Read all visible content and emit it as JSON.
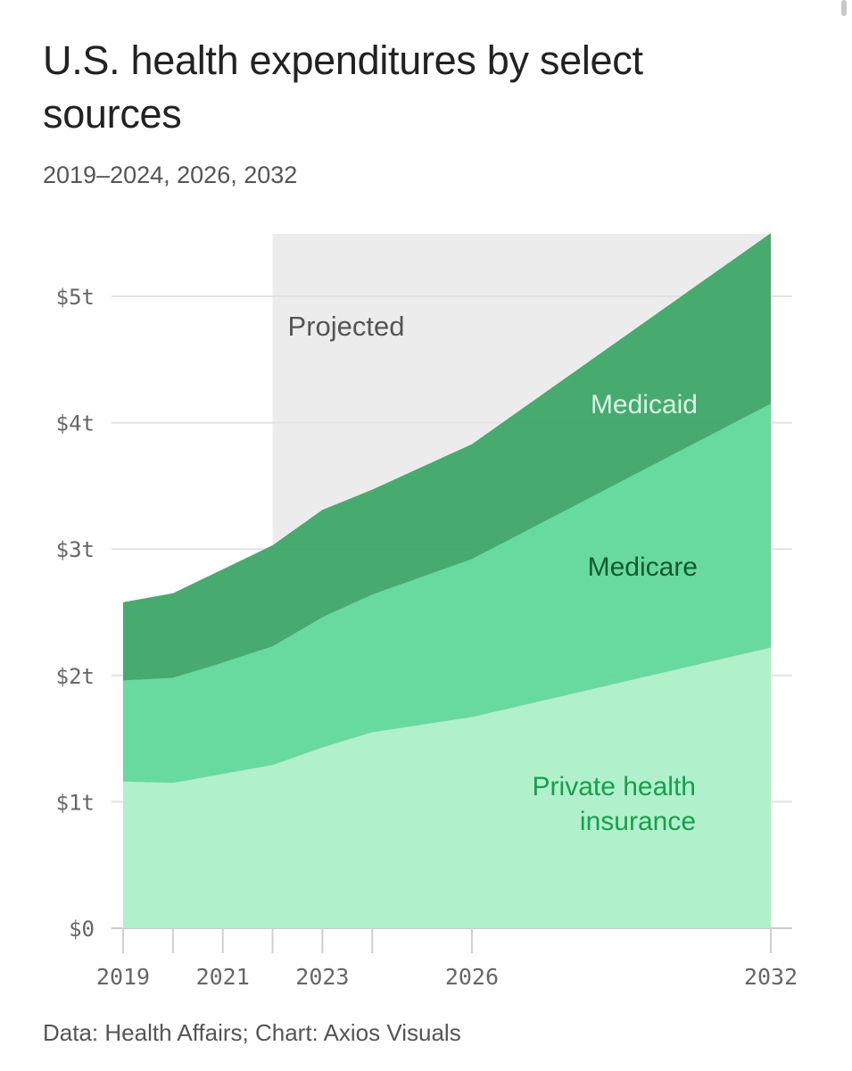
{
  "title": "U.S. health expenditures by select sources",
  "subtitle": "2019–2024, 2026, 2032",
  "source": "Data: Health Affairs; Chart: Axios Visuals",
  "chart_data": {
    "type": "area",
    "stacked": true,
    "x": [
      2019,
      2020,
      2021,
      2022,
      2023,
      2024,
      2026,
      2032
    ],
    "x_ticks": [
      2019,
      2021,
      2023,
      2026,
      2032
    ],
    "x_tick_labels": [
      "2019",
      "2021",
      "2023",
      "2026",
      "2032"
    ],
    "y_ticks": [
      0,
      1,
      2,
      3,
      4,
      5
    ],
    "y_tick_labels": [
      "$0",
      "$1t",
      "$2t",
      "$3t",
      "$4t",
      "$5t"
    ],
    "ylim": [
      0,
      5.5
    ],
    "projected_from": 2022,
    "projected_label": "Projected",
    "grid": true,
    "series": [
      {
        "name": "Private health insurance",
        "label_lines": [
          "Private health",
          "insurance"
        ],
        "color": "#adefc9",
        "label_color": "#16a04c",
        "values": [
          1.16,
          1.15,
          1.22,
          1.29,
          1.43,
          1.55,
          1.67,
          2.22
        ]
      },
      {
        "name": "Medicare",
        "label_lines": [
          "Medicare"
        ],
        "color": "#62d99b",
        "label_color": "#0e5c2b",
        "values": [
          0.8,
          0.83,
          0.88,
          0.94,
          1.03,
          1.09,
          1.25,
          1.93
        ]
      },
      {
        "name": "Medicaid",
        "label_lines": [
          "Medicaid"
        ],
        "color": "#3fa86a",
        "label_color": "#d8f7e4",
        "values": [
          0.62,
          0.67,
          0.74,
          0.8,
          0.85,
          0.83,
          0.91,
          1.35
        ]
      }
    ]
  }
}
